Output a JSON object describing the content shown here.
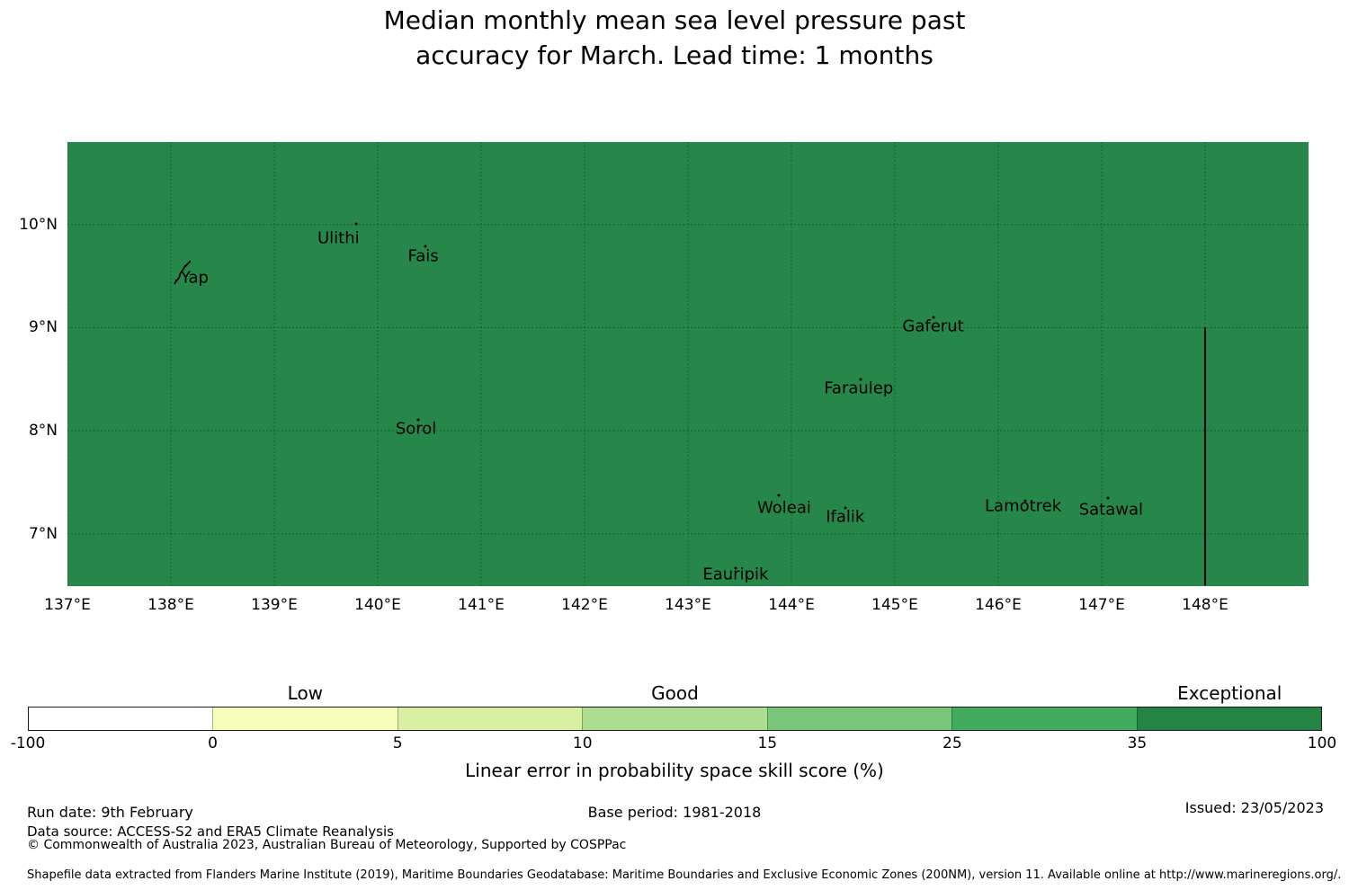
{
  "title": {
    "line1": "Median monthly mean sea level pressure past",
    "line2": "accuracy for March. Lead time: 1 months"
  },
  "map": {
    "fill_color": "#27874a",
    "x_ticks": [
      {
        "value": 137,
        "label": "137°E"
      },
      {
        "value": 138,
        "label": "138°E"
      },
      {
        "value": 139,
        "label": "139°E"
      },
      {
        "value": 140,
        "label": "140°E"
      },
      {
        "value": 141,
        "label": "141°E"
      },
      {
        "value": 142,
        "label": "142°E"
      },
      {
        "value": 143,
        "label": "143°E"
      },
      {
        "value": 144,
        "label": "144°E"
      },
      {
        "value": 145,
        "label": "145°E"
      },
      {
        "value": 146,
        "label": "146°E"
      },
      {
        "value": 147,
        "label": "147°E"
      },
      {
        "value": 148,
        "label": "148°E"
      }
    ],
    "y_ticks": [
      {
        "value": 10,
        "label": "10°N"
      },
      {
        "value": 9,
        "label": "9°N"
      },
      {
        "value": 8,
        "label": "8°N"
      },
      {
        "value": 7,
        "label": "7°N"
      }
    ],
    "islands": [
      {
        "name": "Yap",
        "marker": "archipelago",
        "dot_lon": 138.11,
        "dot_lat": 9.54,
        "label_lon": 138.23,
        "label_lat": 9.48
      },
      {
        "name": "Ulithi",
        "marker": "dot",
        "dot_lon": 139.79,
        "dot_lat": 10.01,
        "label_lon": 139.62,
        "label_lat": 9.87
      },
      {
        "name": "Fais",
        "marker": "dot",
        "dot_lon": 140.46,
        "dot_lat": 9.79,
        "label_lon": 140.44,
        "label_lat": 9.69
      },
      {
        "name": "Sorol",
        "marker": "dot",
        "dot_lon": 140.39,
        "dot_lat": 8.11,
        "label_lon": 140.37,
        "label_lat": 8.02
      },
      {
        "name": "Gaferut",
        "marker": "dot",
        "dot_lon": 145.37,
        "dot_lat": 9.1,
        "label_lon": 145.37,
        "label_lat": 9.01
      },
      {
        "name": "Faraulep",
        "marker": "dot",
        "dot_lon": 144.67,
        "dot_lat": 8.5,
        "label_lon": 144.65,
        "label_lat": 8.41
      },
      {
        "name": "Woleai",
        "marker": "dot",
        "dot_lon": 143.88,
        "dot_lat": 7.37,
        "label_lon": 143.93,
        "label_lat": 7.25
      },
      {
        "name": "Ifalik",
        "marker": "dot",
        "dot_lon": 144.52,
        "dot_lat": 7.25,
        "label_lon": 144.52,
        "label_lat": 7.16
      },
      {
        "name": "Lamotrek",
        "marker": "dot",
        "dot_lon": 146.26,
        "dot_lat": 7.32,
        "label_lon": 146.24,
        "label_lat": 7.27
      },
      {
        "name": "Satawal",
        "marker": "dot",
        "dot_lon": 147.06,
        "dot_lat": 7.35,
        "label_lon": 147.09,
        "label_lat": 7.23
      },
      {
        "name": "Eauripik",
        "marker": "dot",
        "dot_lon": 143.46,
        "dot_lat": 6.67,
        "label_lon": 143.46,
        "label_lat": 6.61
      }
    ],
    "eez_boundary": {
      "lon": 148.0,
      "lat_from": 9.0,
      "lat_to": 6.5
    }
  },
  "colorbar": {
    "segments": [
      {
        "from": -100,
        "to": 0,
        "color": "#ffffff"
      },
      {
        "from": 0,
        "to": 5,
        "color": "#f7fcb9"
      },
      {
        "from": 5,
        "to": 10,
        "color": "#d9f0a3"
      },
      {
        "from": 10,
        "to": 15,
        "color": "#addd8e"
      },
      {
        "from": 15,
        "to": 25,
        "color": "#78c679"
      },
      {
        "from": 25,
        "to": 35,
        "color": "#41ab5d"
      },
      {
        "from": 35,
        "to": 100,
        "color": "#238443"
      }
    ],
    "tick_labels": [
      "-100",
      "0",
      "5",
      "10",
      "15",
      "25",
      "35",
      "100"
    ],
    "tier_labels": [
      {
        "text": "Low",
        "segment": 1
      },
      {
        "text": "Good",
        "segment": 3
      },
      {
        "text": "Exceptional",
        "segment": 6
      }
    ],
    "caption": "Linear error in probability space skill score (%)"
  },
  "footer": {
    "run_date": "Run date: 9th February",
    "base_period": "Base period: 1981-2018",
    "issued": "Issued: 23/05/2023",
    "data_source": "Data source: ACCESS-S2 and ERA5 Climate Reanalysis",
    "copyright": "© Commonwealth of Australia 2023, Australian Bureau of Meteorology, Supported by COSPPac",
    "shapefile_note": "Shapefile data extracted from Flanders Marine Institute (2019), Maritime Boundaries Geodatabase: Maritime Boundaries and Exclusive Economic Zones (200NM), version 11. Available online at http://www.marineregions.org/."
  },
  "chart_data": {
    "type": "heatmap",
    "title": "Median monthly mean sea level pressure past accuracy for March. Lead time: 1 months",
    "xlabel": "",
    "ylabel": "",
    "x_range_deg_east": [
      137,
      149
    ],
    "y_range_deg_north": [
      6.5,
      10.8
    ],
    "x_tick_labels": [
      "137°E",
      "138°E",
      "139°E",
      "140°E",
      "141°E",
      "142°E",
      "143°E",
      "144°E",
      "145°E",
      "146°E",
      "147°E",
      "148°E"
    ],
    "y_tick_labels": [
      "10°N",
      "9°N",
      "8°N",
      "7°N"
    ],
    "grid": true,
    "region_value_band": "35 to 100",
    "region_tier": "Exceptional",
    "region_color": "#27874a",
    "islands_labeled": [
      "Yap",
      "Ulithi",
      "Fais",
      "Sorol",
      "Gaferut",
      "Faraulep",
      "Woleai",
      "Ifalik",
      "Lamotrek",
      "Satawal",
      "Eauripik"
    ],
    "colorbar": {
      "label": "Linear error in probability space skill score (%)",
      "boundaries": [
        -100,
        0,
        5,
        10,
        15,
        25,
        35,
        100
      ],
      "colors": [
        "#ffffff",
        "#f7fcb9",
        "#d9f0a3",
        "#addd8e",
        "#78c679",
        "#41ab5d",
        "#238443"
      ],
      "tier_labels": [
        "Low",
        "Good",
        "Exceptional"
      ],
      "legend_position": "bottom"
    }
  }
}
